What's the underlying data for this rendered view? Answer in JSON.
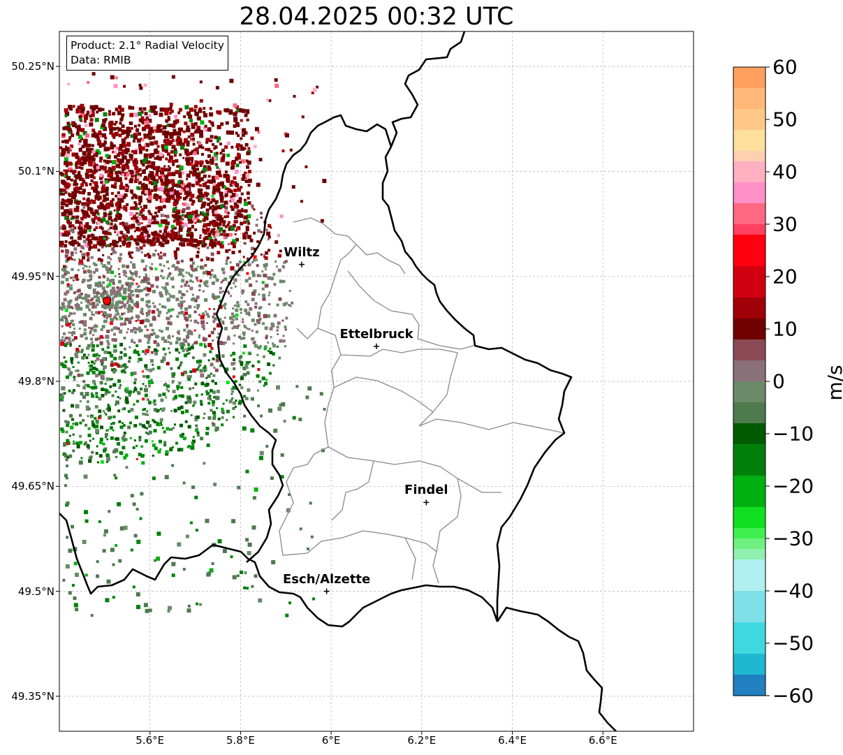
{
  "title": "28.04.2025 00:32 UTC",
  "info": {
    "product": "Product: 2.1° Radial Velocity",
    "source": "Data: RMIB"
  },
  "map": {
    "lon_range": [
      5.4,
      6.8
    ],
    "lat_range": [
      49.3,
      50.3
    ],
    "lat_ticks": [
      {
        "value": 50.25,
        "label": "50.25°N"
      },
      {
        "value": 50.1,
        "label": "50.1°N"
      },
      {
        "value": 49.95,
        "label": "49.95°N"
      },
      {
        "value": 49.8,
        "label": "49.8°N"
      },
      {
        "value": 49.65,
        "label": "49.65°N"
      },
      {
        "value": 49.5,
        "label": "49.5°N"
      },
      {
        "value": 49.35,
        "label": "49.35°N"
      }
    ],
    "lon_ticks": [
      {
        "value": 5.6,
        "label": "5.6°E"
      },
      {
        "value": 5.8,
        "label": "5.8°E"
      },
      {
        "value": 6.0,
        "label": "6°E"
      },
      {
        "value": 6.2,
        "label": "6.2°E"
      },
      {
        "value": 6.4,
        "label": "6.4°E"
      },
      {
        "value": 6.6,
        "label": "6.6°E"
      }
    ],
    "gridlines": true,
    "radar_site": {
      "lon": 5.505,
      "lat": 49.915,
      "color": "#ff0000"
    },
    "cities": [
      {
        "name": "Wiltz",
        "lon": 5.935,
        "lat": 49.967
      },
      {
        "name": "Ettelbruck",
        "lon": 6.1,
        "lat": 49.85
      },
      {
        "name": "Findel",
        "lon": 6.21,
        "lat": 49.627
      },
      {
        "name": "Esch/Alzette",
        "lon": 5.99,
        "lat": 49.5
      }
    ]
  },
  "colorbar": {
    "label": "m/s",
    "min": -60,
    "max": 60,
    "ticks": [
      {
        "value": 60,
        "label": "60"
      },
      {
        "value": 50,
        "label": "50"
      },
      {
        "value": 40,
        "label": "40"
      },
      {
        "value": 30,
        "label": "30"
      },
      {
        "value": 20,
        "label": "20"
      },
      {
        "value": 10,
        "label": "10"
      },
      {
        "value": 0,
        "label": "0"
      },
      {
        "value": -10,
        "label": "−10"
      },
      {
        "value": -20,
        "label": "−20"
      },
      {
        "value": -30,
        "label": "−30"
      },
      {
        "value": -40,
        "label": "−40"
      },
      {
        "value": -50,
        "label": "−50"
      },
      {
        "value": -60,
        "label": "−60"
      }
    ],
    "stops": [
      {
        "from": 56,
        "to": 60,
        "color": "#ffa060"
      },
      {
        "from": 52,
        "to": 56,
        "color": "#ffb878"
      },
      {
        "from": 48,
        "to": 52,
        "color": "#ffc888"
      },
      {
        "from": 44,
        "to": 48,
        "color": "#ffe09c"
      },
      {
        "from": 42,
        "to": 44,
        "color": "#ffd0b0"
      },
      {
        "from": 38,
        "to": 42,
        "color": "#ffb0c0"
      },
      {
        "from": 34,
        "to": 38,
        "color": "#ff90c8"
      },
      {
        "from": 30,
        "to": 34,
        "color": "#ff6880"
      },
      {
        "from": 28,
        "to": 30,
        "color": "#ff4060"
      },
      {
        "from": 22,
        "to": 28,
        "color": "#ff0010"
      },
      {
        "from": 16,
        "to": 22,
        "color": "#d00010"
      },
      {
        "from": 12,
        "to": 16,
        "color": "#a00008"
      },
      {
        "from": 8,
        "to": 12,
        "color": "#700000"
      },
      {
        "from": 4,
        "to": 8,
        "color": "#8a4a55"
      },
      {
        "from": 0,
        "to": 4,
        "color": "#8a7078"
      },
      {
        "from": -4,
        "to": 0,
        "color": "#6a8a6a"
      },
      {
        "from": -8,
        "to": -4,
        "color": "#4e7a4e"
      },
      {
        "from": -12,
        "to": -8,
        "color": "#005a00"
      },
      {
        "from": -18,
        "to": -12,
        "color": "#00800a"
      },
      {
        "from": -24,
        "to": -18,
        "color": "#00b010"
      },
      {
        "from": -28,
        "to": -24,
        "color": "#10e020"
      },
      {
        "from": -30,
        "to": -28,
        "color": "#40f050"
      },
      {
        "from": -32,
        "to": -30,
        "color": "#70f080"
      },
      {
        "from": -34,
        "to": -32,
        "color": "#90f0b0"
      },
      {
        "from": -40,
        "to": -34,
        "color": "#b0f0f0"
      },
      {
        "from": -46,
        "to": -40,
        "color": "#80e0e8"
      },
      {
        "from": -52,
        "to": -46,
        "color": "#40d8e0"
      },
      {
        "from": -56,
        "to": -52,
        "color": "#20b8d0"
      },
      {
        "from": -60,
        "to": -56,
        "color": "#2080c0"
      }
    ]
  }
}
